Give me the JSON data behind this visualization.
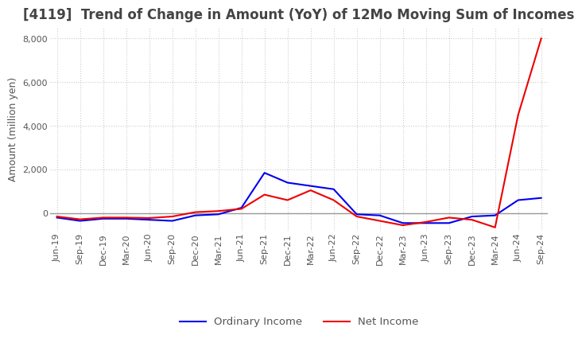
{
  "title": "[4119]  Trend of Change in Amount (YoY) of 12Mo Moving Sum of Incomes",
  "ylabel": "Amount (million yen)",
  "ylim": [
    -800,
    8500
  ],
  "yticks": [
    0,
    2000,
    4000,
    6000,
    8000
  ],
  "x_labels": [
    "Jun-19",
    "Sep-19",
    "Dec-19",
    "Mar-20",
    "Jun-20",
    "Sep-20",
    "Dec-20",
    "Mar-21",
    "Jun-21",
    "Sep-21",
    "Dec-21",
    "Mar-22",
    "Jun-22",
    "Sep-22",
    "Dec-22",
    "Mar-23",
    "Jun-23",
    "Sep-23",
    "Dec-23",
    "Mar-24",
    "Jun-24",
    "Sep-24"
  ],
  "ordinary_income": [
    -200,
    -350,
    -250,
    -250,
    -300,
    -350,
    -100,
    -50,
    250,
    1850,
    1400,
    1250,
    1100,
    -50,
    -100,
    -450,
    -450,
    -450,
    -150,
    -100,
    600,
    700
  ],
  "net_income": [
    -150,
    -280,
    -200,
    -200,
    -220,
    -150,
    50,
    100,
    200,
    850,
    600,
    1050,
    600,
    -150,
    -350,
    -550,
    -400,
    -200,
    -300,
    -650,
    4500,
    8000
  ],
  "ordinary_color": "#0000ee",
  "net_color": "#ee0000",
  "grid_color": "#cccccc",
  "background_color": "#ffffff",
  "title_fontsize": 12,
  "label_fontsize": 9,
  "tick_fontsize": 8,
  "legend_fontsize": 9.5
}
